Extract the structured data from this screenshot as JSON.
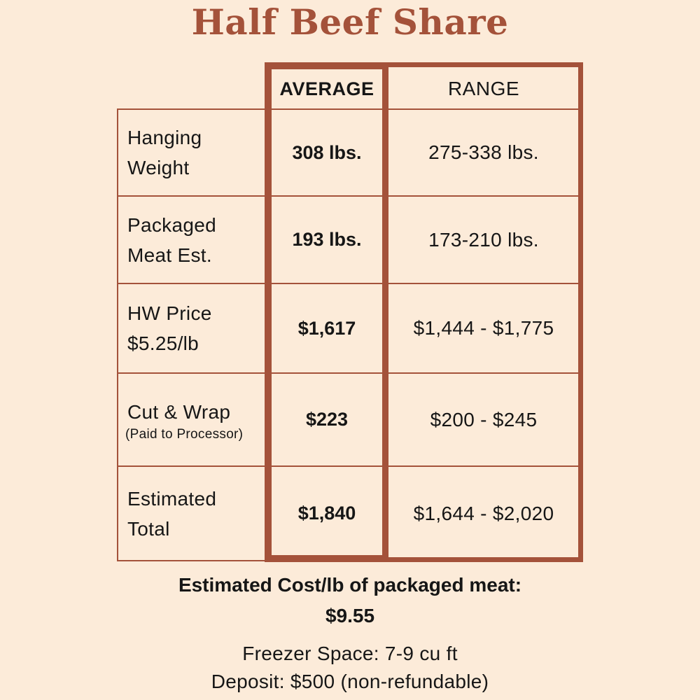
{
  "title": "Half Beef Share",
  "headers": {
    "average": "AVERAGE",
    "range": "RANGE"
  },
  "rows": [
    {
      "label_line1": "Hanging",
      "label_line2": "Weight",
      "average": "308 lbs.",
      "range": "275-338 lbs."
    },
    {
      "label_line1": "Packaged",
      "label_line2": "Meat Est.",
      "average": "193 lbs.",
      "range": "173-210 lbs."
    },
    {
      "label_line1": "HW Price",
      "label_line2": "$5.25/lb",
      "average": "$1,617",
      "range": "$1,444 - $1,775"
    },
    {
      "label_line1": "Cut & Wrap",
      "label_line2": "(Paid to Processor)",
      "average": "$223",
      "range": "$200 - $245"
    },
    {
      "label_line1": "Estimated",
      "label_line2": "Total",
      "average": "$1,840",
      "range": "$1,644 - $2,020"
    }
  ],
  "footer": {
    "cost_label": "Estimated Cost/lb of packaged meat:",
    "cost_value": "$9.55",
    "freezer": "Freezer Space: 7-9 cu ft",
    "deposit": "Deposit: $500 (non-refundable)"
  },
  "colors": {
    "background": "#fcebd9",
    "accent": "#a4523a",
    "text": "#161616"
  }
}
